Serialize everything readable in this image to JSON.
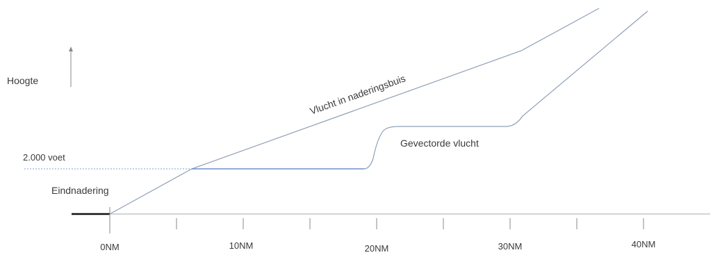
{
  "labels": {
    "altitude": "Hoogte",
    "altitude_2000": "2.000 voet",
    "final_approach": "Eindnadering",
    "corridor_flight": "Vlucht in naderingsbuis",
    "vectored_flight": "Gevectorde vlucht"
  },
  "axis": {
    "ticks": [
      {
        "label": "0NM",
        "value": 0
      },
      {
        "label": "10NM",
        "value": 10
      },
      {
        "label": "20NM",
        "value": 20
      },
      {
        "label": "30NM",
        "value": 30
      },
      {
        "label": "40NM",
        "value": 40
      }
    ]
  },
  "colors": {
    "line": "#8e9fb6",
    "level_segment": "#6f8ed0",
    "dotted_reference": "#7f9fd8",
    "axis": "#9a9a9a",
    "runway": "#111111",
    "text": "#3a3a3a"
  }
}
